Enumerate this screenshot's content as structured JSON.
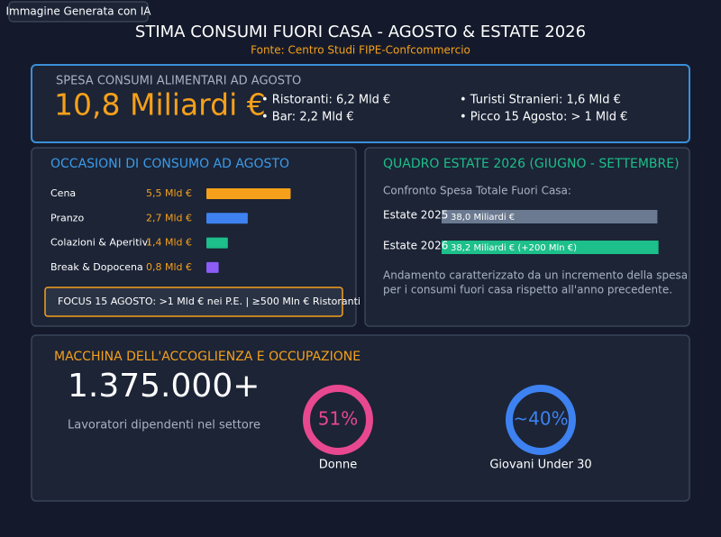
{
  "badge": "Immagine Generata con IA",
  "header": {
    "title": "STIMA CONSUMI FUORI CASA - AGOSTO & ESTATE 2026",
    "source": "Fonte: Centro Studi FIPE-Confcommercio"
  },
  "total": {
    "label": "SPESA CONSUMI ALIMENTARI AD AGOSTO",
    "value": "10,8 Miliardi €",
    "bullets": [
      "• Ristoranti: 6,2 Mld €",
      "• Bar: 2,2 Mld €",
      "• Turisti Stranieri: 1,6 Mld €",
      "• Picco 15 Agosto: > 1 Mld €"
    ]
  },
  "occasions": {
    "title": "OCCASIONI DI CONSUMO AD AGOSTO",
    "items": [
      {
        "label": "Cena",
        "value": 5.5,
        "value_label": "5,5 Mld €",
        "color": "#f5a01a"
      },
      {
        "label": "Pranzo",
        "value": 2.7,
        "value_label": "2,7 Mld €",
        "color": "#3d82f0"
      },
      {
        "label": "Colazioni & Aperitivi",
        "value": 1.4,
        "value_label": "1,4 Mld €",
        "color": "#1dbf8a"
      },
      {
        "label": "Break & Dopocena",
        "value": 0.8,
        "value_label": "0,8 Mld €",
        "color": "#8b5cf6"
      }
    ],
    "focus": "FOCUS 15 AGOSTO: >1 Mld € nei P.E. | ≥500 Mln € Ristoranti"
  },
  "summer": {
    "title": "QUADRO ESTATE 2026 (GIUGNO - SETTEMBRE)",
    "subtitle": "Confronto Spesa Totale Fuori Casa:",
    "items": [
      {
        "label": "Estate 2025",
        "value": 38.0,
        "value_label": "38,0 Miliardi €",
        "color": "#6b7a90"
      },
      {
        "label": "Estate 2026",
        "value": 38.2,
        "value_label": "38,2 Miliardi € (+200 Mln €)",
        "color": "#1dbf8a"
      }
    ],
    "note": [
      "Andamento caratterizzato da un incremento della spesa",
      "per i consumi fuori casa rispetto all'anno precedente."
    ]
  },
  "employment": {
    "title": "MACCHINA DELL'ACCOGLIENZA E OCCUPAZIONE",
    "value": "1.375.000+",
    "caption": "Lavoratori dipendenti nel settore",
    "stats": [
      {
        "value": "51%",
        "label": "Donne",
        "color": "#e8488f"
      },
      {
        "value": "~40%",
        "label": "Giovani Under 30",
        "color": "#3d82f0"
      }
    ]
  }
}
